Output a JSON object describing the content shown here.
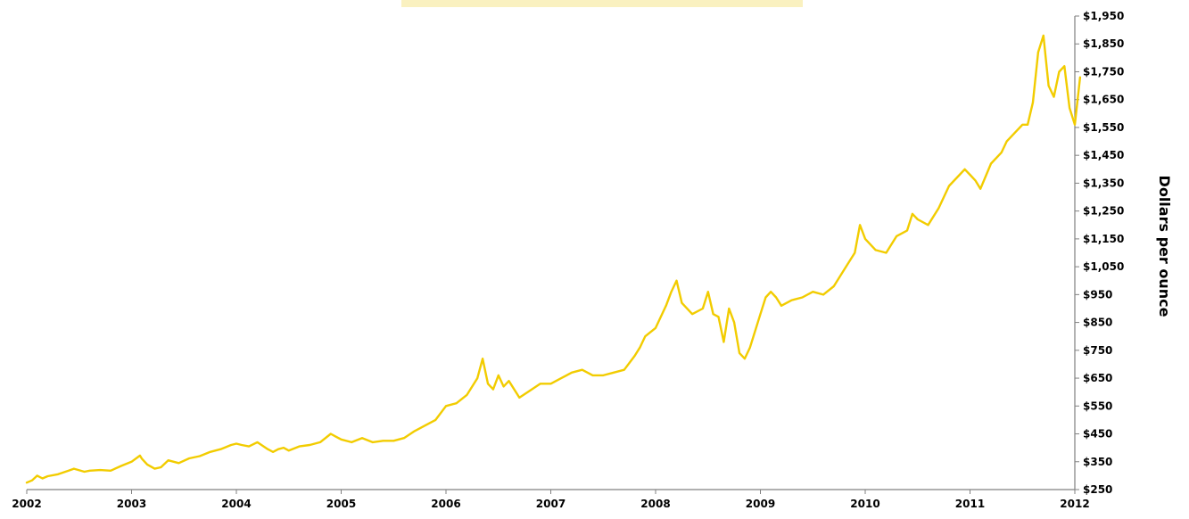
{
  "colors": {
    "line": "#f2cc00",
    "axis": "#808080",
    "text": "#000000",
    "background": "#ffffff"
  },
  "chart_data": {
    "type": "line",
    "title": "",
    "xlabel": "",
    "ylabel": "Dollars per ounce",
    "x_ticks": [
      "2002",
      "2003",
      "2004",
      "2005",
      "2006",
      "2007",
      "2008",
      "2009",
      "2010",
      "2011",
      "2012"
    ],
    "y_ticks": [
      "$1,950",
      "$1,850",
      "$1,750",
      "$1,650",
      "$1,550",
      "$1,450",
      "$1,350",
      "$1,250",
      "$1,150",
      "$1,050",
      "$950",
      "$850",
      "$750",
      "$650",
      "$550",
      "$450",
      "$350",
      "$250"
    ],
    "xlim": [
      2002.0,
      2012.0
    ],
    "ylim": [
      250,
      1950
    ],
    "y_axis_position": "right",
    "grid": false,
    "legend": "none",
    "series": [
      {
        "x": [
          2002.0,
          2002.05,
          2002.1,
          2002.15,
          2002.2,
          2002.3,
          2002.4,
          2002.45,
          2002.55,
          2002.6,
          2002.7,
          2002.8,
          2002.9,
          2003.0,
          2003.08,
          2003.1,
          2003.15,
          2003.22,
          2003.28,
          2003.35,
          2003.45,
          2003.55,
          2003.65,
          2003.75,
          2003.85,
          2003.95,
          2004.0,
          2004.05,
          2004.12,
          2004.2,
          2004.3,
          2004.35,
          2004.4,
          2004.45,
          2004.5,
          2004.6,
          2004.7,
          2004.8,
          2004.9,
          2004.95,
          2005.0,
          2005.1,
          2005.2,
          2005.3,
          2005.4,
          2005.5,
          2005.6,
          2005.7,
          2005.8,
          2005.9,
          2006.0,
          2006.1,
          2006.2,
          2006.3,
          2006.35,
          2006.4,
          2006.45,
          2006.5,
          2006.55,
          2006.6,
          2006.7,
          2006.8,
          2006.9,
          2007.0,
          2007.1,
          2007.2,
          2007.3,
          2007.4,
          2007.5,
          2007.6,
          2007.7,
          2007.8,
          2007.85,
          2007.9,
          2008.0,
          2008.1,
          2008.15,
          2008.2,
          2008.25,
          2008.35,
          2008.45,
          2008.5,
          2008.55,
          2008.6,
          2008.65,
          2008.7,
          2008.75,
          2008.8,
          2008.85,
          2008.9,
          2009.0,
          2009.05,
          2009.1,
          2009.15,
          2009.2,
          2009.3,
          2009.4,
          2009.5,
          2009.6,
          2009.7,
          2009.8,
          2009.9,
          2009.95,
          2010.0,
          2010.1,
          2010.2,
          2010.3,
          2010.4,
          2010.45,
          2010.5,
          2010.6,
          2010.7,
          2010.8,
          2010.9,
          2010.95,
          2011.0,
          2011.05,
          2011.1,
          2011.2,
          2011.3,
          2011.35,
          2011.4,
          2011.45,
          2011.5,
          2011.55,
          2011.6,
          2011.65,
          2011.7,
          2011.75,
          2011.8,
          2011.85,
          2011.9,
          2011.95,
          2012.0,
          2012.05
        ],
        "values": [
          275,
          283,
          300,
          290,
          298,
          305,
          318,
          325,
          314,
          318,
          320,
          318,
          335,
          350,
          372,
          360,
          340,
          325,
          330,
          355,
          345,
          362,
          370,
          385,
          395,
          410,
          415,
          410,
          405,
          420,
          395,
          385,
          395,
          400,
          390,
          405,
          410,
          420,
          450,
          440,
          430,
          420,
          435,
          420,
          425,
          425,
          435,
          460,
          480,
          500,
          550,
          560,
          590,
          650,
          720,
          630,
          610,
          660,
          620,
          640,
          580,
          605,
          630,
          630,
          650,
          670,
          680,
          660,
          660,
          670,
          680,
          730,
          760,
          800,
          830,
          910,
          960,
          1000,
          920,
          880,
          900,
          960,
          880,
          870,
          780,
          900,
          850,
          740,
          720,
          760,
          880,
          940,
          960,
          940,
          910,
          930,
          940,
          960,
          950,
          980,
          1040,
          1100,
          1200,
          1150,
          1110,
          1100,
          1160,
          1180,
          1240,
          1220,
          1200,
          1260,
          1340,
          1380,
          1400,
          1380,
          1360,
          1330,
          1420,
          1460,
          1500,
          1520,
          1540,
          1560,
          1560,
          1640,
          1820,
          1880,
          1700,
          1660,
          1750,
          1770,
          1620,
          1560,
          1730
        ]
      }
    ]
  }
}
